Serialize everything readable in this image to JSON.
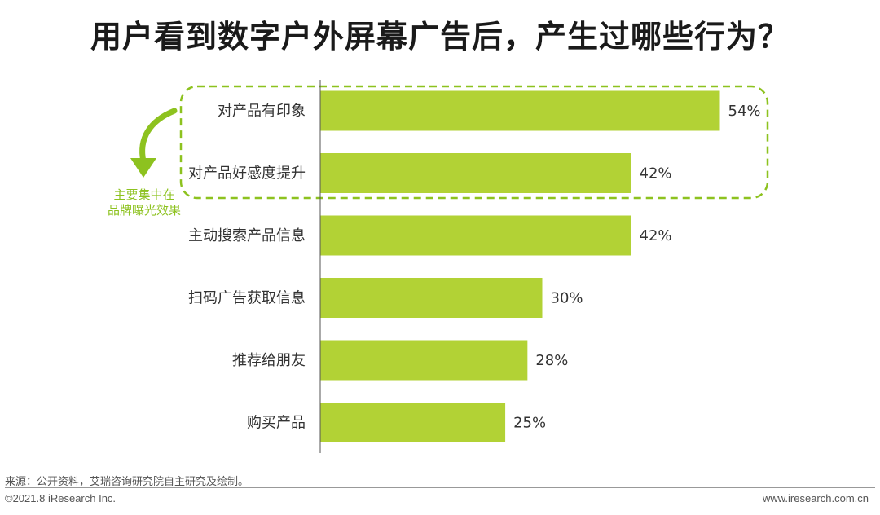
{
  "colors": {
    "bar": "#b2d235",
    "highlight": "#8dc21f",
    "axis": "#555555"
  },
  "chart_data": {
    "type": "bar",
    "orientation": "horizontal",
    "title": "用户看到数字户外屏幕广告后，产生过哪些行为？",
    "categories": [
      "对产品有印象",
      "对产品好感度提升",
      "主动搜索产品信息",
      "扫码广告获取信息",
      "推荐给朋友",
      "购买产品"
    ],
    "values": [
      54,
      42,
      42,
      30,
      28,
      25
    ],
    "value_labels": [
      "54%",
      "42%",
      "42%",
      "30%",
      "28%",
      "25%"
    ],
    "unit": "%",
    "xlim": [
      0,
      60
    ],
    "grid": false,
    "legend": "none",
    "annotation": {
      "text_lines": [
        "主要集中在",
        "品牌曝光效果"
      ],
      "highlighted_categories": [
        0,
        1
      ]
    }
  },
  "footer": {
    "source": "来源：公开资料，艾瑞咨询研究院自主研究及绘制。",
    "copyright": "©2021.8 iResearch Inc.",
    "website": "www.iresearch.com.cn"
  }
}
